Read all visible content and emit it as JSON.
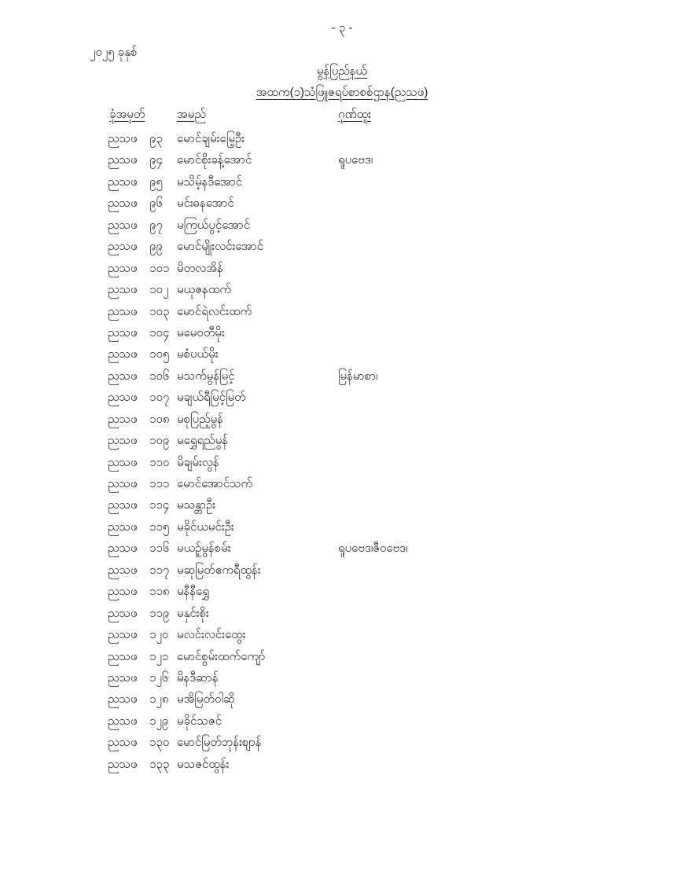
{
  "document": {
    "page_number_label": "- ၃ -",
    "year_label": "၂၀၂၅ ခုနှစ်",
    "region_title": "မွန်ပြည်နယ်",
    "center_title": "အထက(၁)သံဖြူဇရပ်စာစစ်ဌာန(ညသဖ)"
  },
  "table": {
    "headers": {
      "roll_number": "ခုံအမှတ်",
      "name": "အမည်",
      "distinction": "ဂုဏ်ထူး"
    },
    "rows": [
      {
        "code": "ညသဖ",
        "number": "၉၃",
        "name": "မောင်ချမ်းမြေ့ဦး",
        "distinction": ""
      },
      {
        "code": "ညသဖ",
        "number": "၉၄",
        "name": "မောင်စိုးခန့်အောင်",
        "distinction": "ရူပဗေဒ၊"
      },
      {
        "code": "ညသဖ",
        "number": "၉၅",
        "name": "မသိမ့်နဒီအောင်",
        "distinction": ""
      },
      {
        "code": "ညသဖ",
        "number": "၉၆",
        "name": "မင်းဓနအောင်",
        "distinction": ""
      },
      {
        "code": "ညသဖ",
        "number": "၉၇",
        "name": "မကြယ်ပွင့်အောင်",
        "distinction": ""
      },
      {
        "code": "ညသဖ",
        "number": "၉၉",
        "name": "မောင်မျိုးလင်းအောင်",
        "distinction": ""
      },
      {
        "code": "ညသဖ",
        "number": "၁၀၁",
        "name": "မိတလအိန်",
        "distinction": ""
      },
      {
        "code": "ညသဖ",
        "number": "၁၀၂",
        "name": "မယုဇနထက်",
        "distinction": ""
      },
      {
        "code": "ညသဖ",
        "number": "၁၀၃",
        "name": "မောင်ရဲလင်းထက်",
        "distinction": ""
      },
      {
        "code": "ညသဖ",
        "number": "၁၀၄",
        "name": "မမေဝတီမိုး",
        "distinction": ""
      },
      {
        "code": "ညသဖ",
        "number": "၁၀၅",
        "name": "မစံပယ်မိုး",
        "distinction": ""
      },
      {
        "code": "ညသဖ",
        "number": "၁၀၆",
        "name": "မသက်မွန်မြင့်",
        "distinction": "မြန်မာစာ၊"
      },
      {
        "code": "ညသဖ",
        "number": "၁၀၇",
        "name": "မချယ်ရီမြင့်မြတ်",
        "distinction": ""
      },
      {
        "code": "ညသဖ",
        "number": "၁၀၈",
        "name": "မစုပြည့်မွန်",
        "distinction": ""
      },
      {
        "code": "ညသဖ",
        "number": "၁၀၉",
        "name": "မရွှေရည်မွန်",
        "distinction": ""
      },
      {
        "code": "ညသဖ",
        "number": "၁၁၀",
        "name": "မိချမ်းလွန်",
        "distinction": ""
      },
      {
        "code": "ညသဖ",
        "number": "၁၁၁",
        "name": "မောင်အောင်သက်",
        "distinction": ""
      },
      {
        "code": "ညသဖ",
        "number": "၁၁၄",
        "name": "မသန္တာဦး",
        "distinction": ""
      },
      {
        "code": "ညသဖ",
        "number": "၁၁၅",
        "name": "မခိုင်ယမင်းဦး",
        "distinction": ""
      },
      {
        "code": "ညသဖ",
        "number": "၁၁၆",
        "name": "မယဉ့်မွန်စမ်း",
        "distinction": "ရူပဗေဒ၊ဇီဝဗေဒ၊"
      },
      {
        "code": "ညသဖ",
        "number": "၁၁၇",
        "name": "မဆုမြတ်ဧကရီထွန်း",
        "distinction": ""
      },
      {
        "code": "ညသဖ",
        "number": "၁၁၈",
        "name": "မနီနီရွှေ",
        "distinction": ""
      },
      {
        "code": "ညသဖ",
        "number": "၁၁၉",
        "name": "မနှင်းစိုး",
        "distinction": ""
      },
      {
        "code": "ညသဖ",
        "number": "၁၂၀",
        "name": "မလင်းလင်းထွေး",
        "distinction": ""
      },
      {
        "code": "ညသဖ",
        "number": "၁၂၁",
        "name": "မောင်စွမ်းထက်ကျော်",
        "distinction": ""
      },
      {
        "code": "ညသဖ",
        "number": "၁၂၆",
        "name": "မိနဒီဆာန်",
        "distinction": ""
      },
      {
        "code": "ညသဖ",
        "number": "၁၂၈",
        "name": "မအိမြတ်ဝါဆို",
        "distinction": ""
      },
      {
        "code": "ညသဖ",
        "number": "၁၂၉",
        "name": "မခိုင်သဇင်",
        "distinction": ""
      },
      {
        "code": "ညသဖ",
        "number": "၁၃၀",
        "name": "မောင်မြတ်ဘုန်းစျာန်",
        "distinction": ""
      },
      {
        "code": "ညသဖ",
        "number": "၁၃၃",
        "name": "မသဇင်ထွန်း",
        "distinction": ""
      }
    ]
  },
  "colors": {
    "text": "#212121",
    "background": "#ffffff"
  }
}
